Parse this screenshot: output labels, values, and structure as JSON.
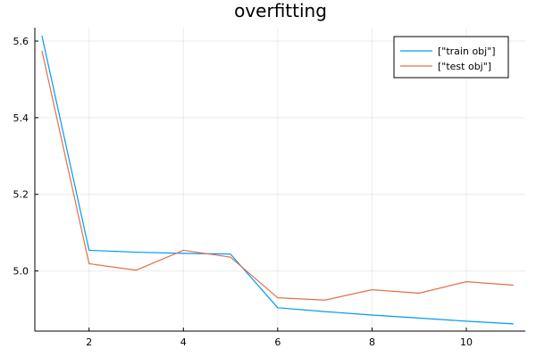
{
  "chart_data": {
    "type": "line",
    "title": "overfitting",
    "xlabel": "",
    "ylabel": "",
    "xlim": [
      0.85,
      11.25
    ],
    "ylim": [
      4.843,
      5.635
    ],
    "x_ticks": [
      2,
      4,
      6,
      8,
      10
    ],
    "y_ticks": [
      5.0,
      5.2,
      5.4,
      5.6
    ],
    "y_tick_labels": [
      "5.0",
      "5.2",
      "5.4",
      "5.6"
    ],
    "grid": true,
    "legend_position": "top-right",
    "x": [
      1,
      2,
      3,
      4,
      5,
      6,
      7,
      8,
      9,
      10,
      11
    ],
    "series": [
      {
        "name": "[\"train obj\"]",
        "color": "#009AFA",
        "values": [
          5.614,
          5.054,
          5.049,
          5.046,
          5.044,
          4.904,
          4.894,
          4.885,
          4.877,
          4.869,
          4.862
        ]
      },
      {
        "name": "[\"test obj\"]",
        "color": "#E36F47",
        "values": [
          5.575,
          5.019,
          5.002,
          5.054,
          5.036,
          4.93,
          4.924,
          4.951,
          4.942,
          4.972,
          4.963
        ]
      }
    ]
  }
}
